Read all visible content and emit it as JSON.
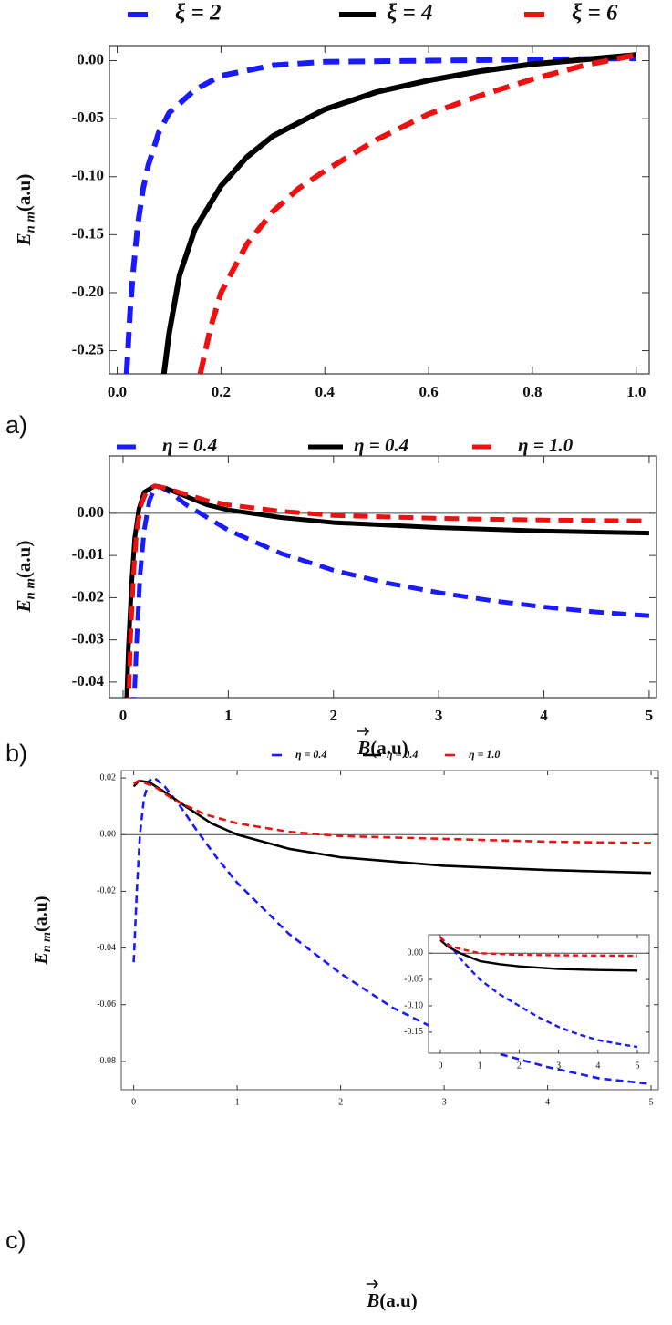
{
  "chart_data": [
    {
      "type": "line",
      "panel_label": "a)",
      "y_label": {
        "symbol": "E",
        "subscript": "n m",
        "unit": "(a.u)"
      },
      "xlim": [
        -0.015,
        1.025
      ],
      "ylim": [
        -0.27,
        0.013
      ],
      "xticks": [
        {
          "value": 0,
          "label": "0.0"
        },
        0.2,
        0.4,
        0.6,
        0.8,
        {
          "value": 1,
          "label": "1.0"
        }
      ],
      "yticks": [
        {
          "value": 0,
          "label": "0.00"
        },
        -0.05,
        {
          "value": -0.1,
          "label": "-0.10"
        },
        -0.15,
        {
          "value": -0.2,
          "label": "-0.20"
        },
        -0.25
      ],
      "zero_line": false,
      "series": [
        {
          "name": "ξ = 2",
          "color": "#1a1aff",
          "dashed": true,
          "x": [
            0.018,
            0.025,
            0.03,
            0.04,
            0.05,
            0.06,
            0.08,
            0.1,
            0.15,
            0.2,
            0.3,
            0.4,
            0.6,
            0.8,
            1.0
          ],
          "values": [
            -0.27,
            -0.215,
            -0.185,
            -0.14,
            -0.11,
            -0.09,
            -0.062,
            -0.045,
            -0.025,
            -0.013,
            -0.004,
            -0.001,
            0.0,
            0.001,
            0.002
          ]
        },
        {
          "name": "ξ = 4",
          "color": "#000000",
          "dashed": false,
          "x": [
            0.09,
            0.1,
            0.12,
            0.15,
            0.2,
            0.25,
            0.3,
            0.4,
            0.5,
            0.6,
            0.7,
            0.8,
            0.9,
            1.0
          ],
          "values": [
            -0.27,
            -0.235,
            -0.185,
            -0.145,
            -0.108,
            -0.083,
            -0.065,
            -0.042,
            -0.027,
            -0.017,
            -0.009,
            -0.003,
            0.001,
            0.005
          ]
        },
        {
          "name": "ξ = 6",
          "color": "#ee1111",
          "dashed": true,
          "x": [
            0.16,
            0.18,
            0.2,
            0.25,
            0.3,
            0.35,
            0.4,
            0.5,
            0.6,
            0.7,
            0.8,
            0.9,
            1.0
          ],
          "values": [
            -0.27,
            -0.23,
            -0.2,
            -0.158,
            -0.13,
            -0.11,
            -0.095,
            -0.068,
            -0.046,
            -0.03,
            -0.016,
            -0.004,
            0.005
          ]
        }
      ]
    },
    {
      "type": "line",
      "panel_label": "b)",
      "y_label": {
        "symbol": "E",
        "subscript": "n m",
        "unit": "(a.u)"
      },
      "x_label": {
        "symbol": "B",
        "unit": "(a.u)"
      },
      "xlim": [
        -0.13,
        5.07
      ],
      "ylim": [
        -0.0437,
        0.0136
      ],
      "xticks": [
        0,
        1,
        2,
        3,
        4,
        5
      ],
      "yticks": [
        {
          "value": 0,
          "label": "0.00"
        },
        -0.01,
        -0.02,
        -0.03,
        -0.04
      ],
      "zero_line": true,
      "series": [
        {
          "name": "η = 0.4",
          "color": "#1a1aff",
          "dashed": true,
          "x": [
            0.1,
            0.13,
            0.16,
            0.2,
            0.25,
            0.3,
            0.35,
            0.45,
            0.6,
            0.8,
            1,
            1.5,
            2,
            2.5,
            3,
            3.5,
            4,
            4.5,
            5
          ],
          "values": [
            -0.047,
            -0.03,
            -0.015,
            -0.004,
            0.003,
            0.006,
            0.0063,
            0.005,
            0.002,
            -0.001,
            -0.004,
            -0.0095,
            -0.0135,
            -0.0165,
            -0.0188,
            -0.0207,
            -0.0222,
            -0.0234,
            -0.0243
          ]
        },
        {
          "name": "η = 0.4",
          "color": "#000000",
          "dashed": false,
          "x": [
            0.03,
            0.05,
            0.08,
            0.11,
            0.15,
            0.2,
            0.3,
            0.4,
            0.6,
            0.8,
            1,
            1.5,
            2,
            3,
            4,
            5
          ],
          "values": [
            -0.047,
            -0.032,
            -0.017,
            -0.006,
            0.001,
            0.005,
            0.0065,
            0.006,
            0.004,
            0.002,
            0.0008,
            -0.001,
            -0.0022,
            -0.0034,
            -0.0042,
            -0.0047
          ]
        },
        {
          "name": "η = 1.0",
          "color": "#ee1111",
          "dashed": true,
          "x": [
            0.05,
            0.07,
            0.1,
            0.13,
            0.17,
            0.22,
            0.3,
            0.4,
            0.6,
            0.8,
            1,
            1.5,
            2,
            3,
            4,
            5
          ],
          "values": [
            -0.047,
            -0.03,
            -0.014,
            -0.004,
            0.002,
            0.005,
            0.0065,
            0.006,
            0.0045,
            0.003,
            0.002,
            0.0005,
            -0.0005,
            -0.0012,
            -0.0016,
            -0.0018
          ]
        }
      ]
    },
    {
      "type": "line",
      "panel_label": "c)",
      "y_label": {
        "symbol": "E",
        "subscript": "n m",
        "unit": "(a.u)"
      },
      "x_label": {
        "symbol": "B",
        "unit": "(a.u)"
      },
      "xlim": [
        -0.12,
        5.07
      ],
      "ylim": [
        -0.09,
        0.0226
      ],
      "xticks": [
        0,
        1,
        2,
        3,
        4,
        5
      ],
      "yticks": [
        0.02,
        {
          "value": 0,
          "label": "0.00"
        },
        -0.02,
        -0.04,
        -0.06,
        -0.08
      ],
      "zero_line": true,
      "series": [
        {
          "name": "η = 0.4",
          "color": "#1a1aff",
          "dashed": true,
          "x": [
            0.0,
            0.03,
            0.06,
            0.1,
            0.15,
            0.2,
            0.3,
            0.45,
            0.6,
            0.8,
            1,
            1.5,
            2,
            2.5,
            3,
            3.5,
            4,
            4.5,
            5
          ],
          "values": [
            -0.045,
            -0.02,
            0.0,
            0.013,
            0.019,
            0.02,
            0.017,
            0.01,
            0.002,
            -0.008,
            -0.017,
            -0.035,
            -0.049,
            -0.061,
            -0.07,
            -0.077,
            -0.082,
            -0.086,
            -0.088
          ]
        },
        {
          "name": "η = 0.4",
          "color": "#000000",
          "dashed": false,
          "x": [
            0,
            0.05,
            0.15,
            0.3,
            0.5,
            0.75,
            1,
            1.5,
            2,
            3,
            4,
            5
          ],
          "values": [
            0.017,
            0.019,
            0.0185,
            0.015,
            0.01,
            0.004,
            0.0,
            -0.005,
            -0.008,
            -0.011,
            -0.0125,
            -0.0135
          ]
        },
        {
          "name": "η = 1.0",
          "color": "#ee1111",
          "dashed": true,
          "x": [
            0,
            0.05,
            0.2,
            0.4,
            0.7,
            1,
            1.5,
            2,
            3,
            4,
            5
          ],
          "values": [
            0.018,
            0.019,
            0.017,
            0.012,
            0.007,
            0.004,
            0.001,
            -0.0005,
            -0.0015,
            -0.0025,
            -0.003
          ]
        }
      ]
    },
    {
      "type": "line",
      "xlim": [
        -0.3,
        5.3
      ],
      "ylim": [
        -0.19,
        0.035
      ],
      "xticks": [
        0,
        1,
        2,
        3,
        4,
        5
      ],
      "yticks": [
        {
          "value": 0,
          "label": "0.00"
        },
        -0.05,
        {
          "value": -0.1,
          "label": "-0.10"
        },
        -0.15
      ],
      "zero_line": true,
      "series": [
        {
          "color": "#1a1aff",
          "dashed": true,
          "x": [
            0,
            0.3,
            0.5,
            1,
            1.5,
            2,
            2.5,
            3,
            3.5,
            4,
            4.5,
            5
          ],
          "values": [
            0.03,
            0.01,
            -0.01,
            -0.05,
            -0.078,
            -0.1,
            -0.122,
            -0.14,
            -0.154,
            -0.165,
            -0.172,
            -0.178
          ]
        },
        {
          "color": "#000000",
          "dashed": false,
          "x": [
            0,
            0.2,
            0.5,
            1,
            1.5,
            2,
            3,
            4,
            5
          ],
          "values": [
            0.025,
            0.012,
            0.0,
            -0.015,
            -0.021,
            -0.025,
            -0.03,
            -0.032,
            -0.033
          ]
        },
        {
          "color": "#ee1111",
          "dashed": true,
          "x": [
            0,
            0.2,
            0.5,
            1,
            2,
            3,
            4,
            5
          ],
          "values": [
            0.03,
            0.015,
            0.008,
            0.0,
            -0.003,
            -0.004,
            -0.0045,
            -0.005
          ]
        }
      ]
    }
  ]
}
